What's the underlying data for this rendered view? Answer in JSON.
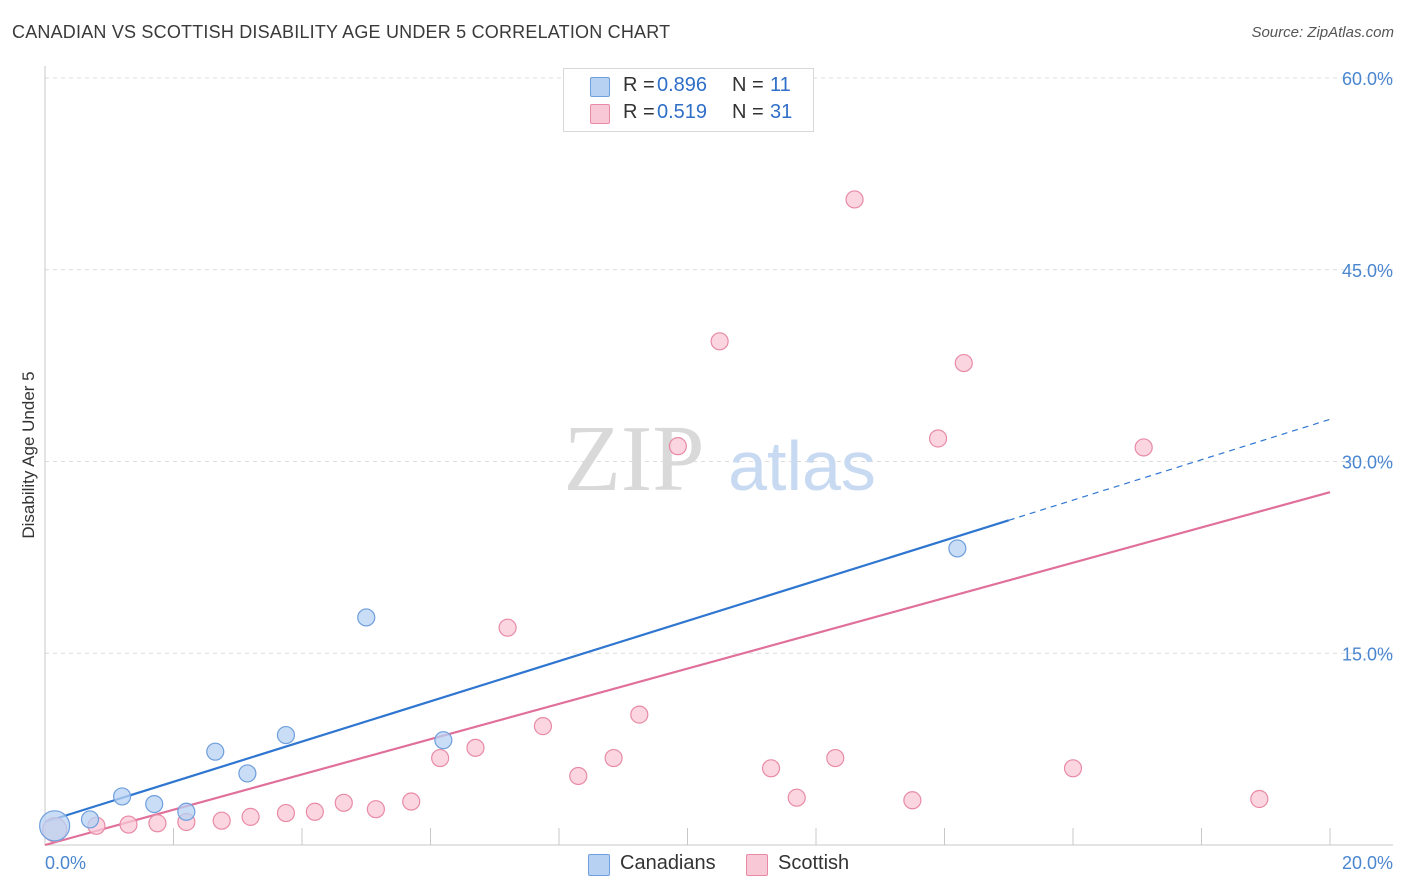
{
  "header": {
    "title": "CANADIAN VS SCOTTISH DISABILITY AGE UNDER 5 CORRELATION CHART",
    "source": "Source: ZipAtlas.com"
  },
  "watermark": {
    "zip": "ZIP",
    "atlas": "atlas"
  },
  "colors": {
    "canadians_fill": "#b7d1f3",
    "canadians_stroke": "#6f9fdc",
    "canadians_line": "#2f76d0",
    "scottish_fill": "#f9c8d6",
    "scottish_stroke": "#e88aa6",
    "scottish_line": "#e0709a",
    "tick_color": "#4a86d0"
  },
  "legend": {
    "rows": [
      {
        "r_label": "R =",
        "r_value": "0.896",
        "n_label": "N =",
        "n_value": "11"
      },
      {
        "r_label": "R =",
        "r_value": "0.519",
        "n_label": "N =",
        "n_value": "31"
      }
    ]
  },
  "bottom_legend": {
    "canadians": "Canadians",
    "scottish": "Scottish"
  },
  "chart_data": {
    "type": "scatter",
    "title": "CANADIAN VS SCOTTISH DISABILITY AGE UNDER 5 CORRELATION CHART",
    "xlabel": "",
    "ylabel": "Disability Age Under 5",
    "xlim": [
      0,
      20
    ],
    "ylim": [
      0,
      60
    ],
    "x_ticks": [
      "0.0%",
      "20.0%"
    ],
    "y_ticks": [
      "15.0%",
      "30.0%",
      "45.0%",
      "60.0%"
    ],
    "y_tick_values": [
      15,
      30,
      45,
      60
    ],
    "legend_position": "top-center",
    "grid": true,
    "series": [
      {
        "name": "Canadians",
        "points": [
          [
            0.15,
            1.5
          ],
          [
            0.7,
            2.0
          ],
          [
            1.2,
            3.8
          ],
          [
            1.7,
            3.2
          ],
          [
            2.2,
            2.6
          ],
          [
            2.65,
            7.3
          ],
          [
            3.15,
            5.6
          ],
          [
            3.75,
            8.6
          ],
          [
            5.0,
            17.8
          ],
          [
            6.2,
            8.2
          ],
          [
            14.2,
            23.2
          ]
        ],
        "trend": {
          "x": [
            0,
            15.0
          ],
          "y": [
            1.8,
            25.4
          ],
          "extended_to_x": 20,
          "extended_y": 33.3
        }
      },
      {
        "name": "Scottish",
        "points": [
          [
            0.15,
            1.2
          ],
          [
            0.8,
            1.5
          ],
          [
            1.3,
            1.6
          ],
          [
            1.75,
            1.7
          ],
          [
            2.2,
            1.8
          ],
          [
            2.75,
            1.9
          ],
          [
            3.2,
            2.2
          ],
          [
            3.75,
            2.5
          ],
          [
            4.2,
            2.6
          ],
          [
            4.65,
            3.3
          ],
          [
            5.15,
            2.8
          ],
          [
            5.7,
            3.4
          ],
          [
            6.15,
            6.8
          ],
          [
            6.7,
            7.6
          ],
          [
            7.2,
            17.0
          ],
          [
            7.75,
            9.3
          ],
          [
            8.3,
            5.4
          ],
          [
            8.85,
            6.8
          ],
          [
            9.25,
            10.2
          ],
          [
            9.85,
            31.2
          ],
          [
            10.5,
            39.4
          ],
          [
            11.3,
            6.0
          ],
          [
            11.7,
            3.7
          ],
          [
            12.3,
            6.8
          ],
          [
            12.6,
            50.5
          ],
          [
            13.5,
            3.5
          ],
          [
            13.9,
            31.8
          ],
          [
            14.3,
            37.7
          ],
          [
            16.0,
            6.0
          ],
          [
            17.1,
            31.1
          ],
          [
            18.9,
            3.6
          ]
        ],
        "trend": {
          "x": [
            0,
            20
          ],
          "y": [
            0,
            27.6
          ]
        }
      }
    ]
  }
}
